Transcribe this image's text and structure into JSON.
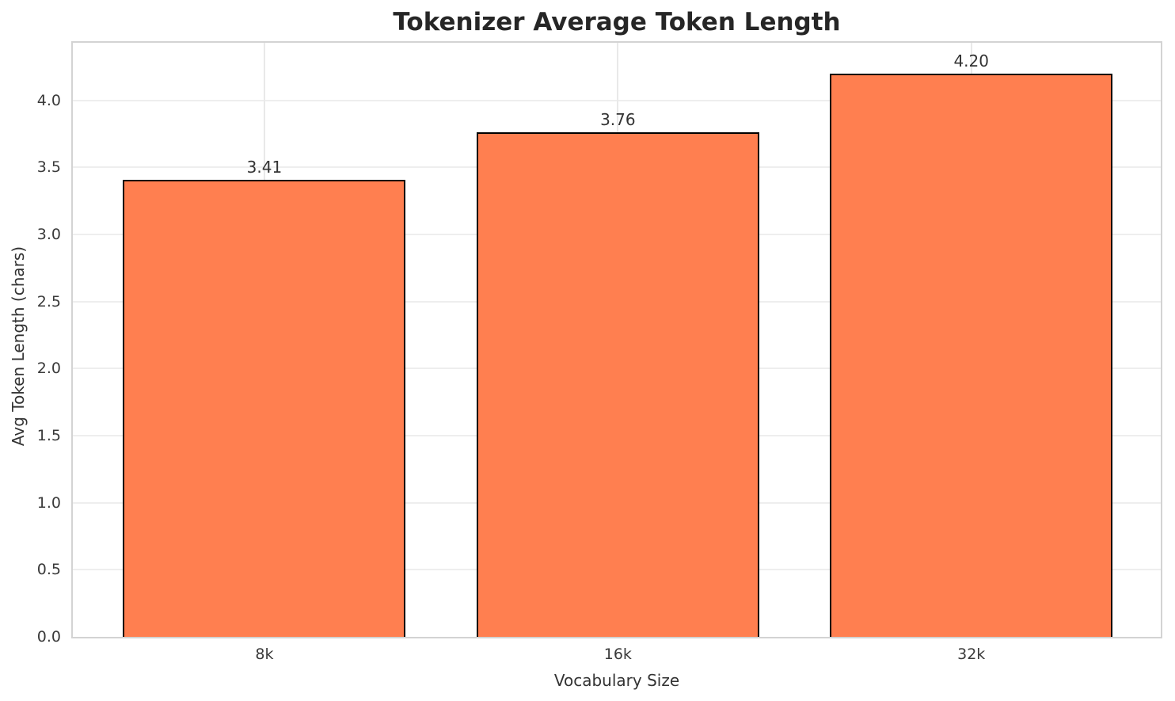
{
  "chart_data": {
    "type": "bar",
    "title": "Tokenizer Average Token Length",
    "xlabel": "Vocabulary Size",
    "ylabel": "Avg Token Length (chars)",
    "categories": [
      "8k",
      "16k",
      "32k"
    ],
    "values": [
      3.41,
      3.76,
      4.2
    ],
    "value_labels": [
      "3.41",
      "3.76",
      "4.20"
    ],
    "yticks": [
      0.0,
      0.5,
      1.0,
      1.5,
      2.0,
      2.5,
      3.0,
      3.5,
      4.0
    ],
    "ytick_labels": [
      "0.0",
      "0.5",
      "1.0",
      "1.5",
      "2.0",
      "2.5",
      "3.0",
      "3.5",
      "4.0"
    ],
    "ylim": [
      0,
      4.43
    ],
    "grid": true,
    "legend_position": "none",
    "colors": {
      "bar_fill": "#FF7F50",
      "bar_edge": "#000000",
      "grid_line": "#eeeeee",
      "spine": "#d3d3d3",
      "title_text": "#262626",
      "tick_text": "#3a3a3a",
      "background": "#ffffff"
    }
  }
}
